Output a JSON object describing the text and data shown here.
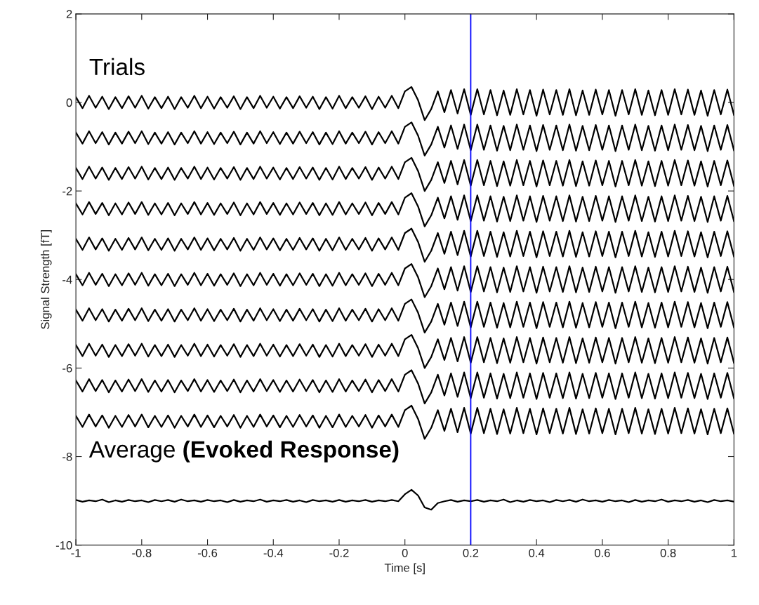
{
  "chart_data": {
    "type": "line",
    "xlabel": "Time [s]",
    "ylabel": "Signal Strength [fT]",
    "annotations": [
      "Trials",
      "Average ",
      "(Evoked Response)"
    ],
    "xlim": [
      -1,
      1
    ],
    "ylim": [
      -10,
      2
    ],
    "xticks": [
      -1,
      -0.8,
      -0.6,
      -0.4,
      -0.2,
      0,
      0.2,
      0.4,
      0.6,
      0.8,
      1
    ],
    "yticks": [
      -10,
      -8,
      -6,
      -4,
      -2,
      0,
      2
    ],
    "grid": false,
    "legend": false,
    "marker": "none",
    "line_style": "solid",
    "ref_lines": [
      {
        "axis": "x",
        "value": 0.2,
        "color": "#0000ff"
      }
    ],
    "x": [
      -1,
      -0.98,
      -0.96,
      -0.94,
      -0.92,
      -0.9,
      -0.88,
      -0.86,
      -0.84,
      -0.82,
      -0.8,
      -0.78,
      -0.76,
      -0.74,
      -0.72,
      -0.7,
      -0.68,
      -0.66,
      -0.64,
      -0.62,
      -0.6,
      -0.58,
      -0.56,
      -0.54,
      -0.52,
      -0.5,
      -0.48,
      -0.46,
      -0.44,
      -0.42,
      -0.4,
      -0.38,
      -0.36,
      -0.34,
      -0.32,
      -0.3,
      -0.28,
      -0.26,
      -0.24,
      -0.22,
      -0.2,
      -0.18,
      -0.16,
      -0.14,
      -0.12,
      -0.1,
      -0.08,
      -0.06,
      -0.04,
      -0.02,
      0,
      0.02,
      0.04,
      0.06,
      0.08,
      0.1,
      0.12,
      0.14,
      0.16,
      0.18,
      0.2,
      0.22,
      0.24,
      0.26,
      0.28,
      0.3,
      0.32,
      0.34,
      0.36,
      0.38,
      0.4,
      0.42,
      0.44,
      0.46,
      0.48,
      0.5,
      0.52,
      0.54,
      0.56,
      0.58,
      0.6,
      0.62,
      0.64,
      0.66,
      0.68,
      0.7,
      0.72,
      0.74,
      0.76,
      0.78,
      0.8,
      0.82,
      0.84,
      0.86,
      0.88,
      0.9,
      0.92,
      0.94,
      0.96,
      0.98,
      1
    ],
    "series": [
      {
        "color": "#000000",
        "values": [
          0.12,
          -0.13,
          0.15,
          -0.12,
          0.13,
          -0.15,
          0.12,
          -0.13,
          0.14,
          -0.12,
          0.15,
          -0.14,
          0.12,
          -0.13,
          0.13,
          -0.15,
          0.12,
          -0.12,
          0.15,
          -0.13,
          0.13,
          -0.14,
          0.12,
          -0.12,
          0.14,
          -0.15,
          0.12,
          -0.13,
          0.15,
          -0.12,
          0.13,
          -0.14,
          0.12,
          -0.13,
          0.14,
          -0.12,
          0.13,
          -0.15,
          0.12,
          -0.14,
          0.15,
          -0.13,
          0.12,
          -0.12,
          0.14,
          -0.15,
          0.13,
          -0.12,
          0.15,
          -0.13,
          0.25,
          0.35,
          0.05,
          -0.4,
          -0.15,
          0.25,
          -0.22,
          0.28,
          -0.25,
          0.3,
          -0.28,
          0.3,
          -0.27,
          0.28,
          -0.29,
          0.27,
          -0.28,
          0.3,
          -0.27,
          0.28,
          -0.3,
          0.29,
          -0.27,
          0.28,
          -0.28,
          0.3,
          -0.29,
          0.27,
          -0.28,
          0.29,
          -0.27,
          0.28,
          -0.3,
          0.28,
          -0.27,
          0.3,
          -0.28,
          0.27,
          -0.29,
          0.28,
          -0.28,
          0.3,
          -0.27,
          0.29,
          -0.28,
          0.27,
          -0.3,
          0.28,
          -0.27,
          0.29,
          -0.28
        ]
      },
      {
        "color": "#000000",
        "values": [
          -0.68,
          -0.93,
          -0.65,
          -0.92,
          -0.67,
          -0.95,
          -0.68,
          -0.93,
          -0.66,
          -0.92,
          -0.65,
          -0.94,
          -0.68,
          -0.93,
          -0.67,
          -0.95,
          -0.68,
          -0.92,
          -0.65,
          -0.93,
          -0.67,
          -0.94,
          -0.68,
          -0.92,
          -0.66,
          -0.95,
          -0.68,
          -0.93,
          -0.65,
          -0.92,
          -0.67,
          -0.94,
          -0.68,
          -0.93,
          -0.66,
          -0.92,
          -0.67,
          -0.95,
          -0.68,
          -0.94,
          -0.65,
          -0.93,
          -0.68,
          -0.92,
          -0.66,
          -0.95,
          -0.67,
          -0.92,
          -0.65,
          -0.93,
          -0.55,
          -0.45,
          -0.75,
          -1.2,
          -0.95,
          -0.55,
          -1.02,
          -0.52,
          -1.05,
          -0.5,
          -1.08,
          -0.5,
          -1.07,
          -0.52,
          -1.09,
          -0.53,
          -1.08,
          -0.5,
          -1.07,
          -0.52,
          -1.1,
          -0.51,
          -1.07,
          -0.52,
          -1.08,
          -0.5,
          -1.09,
          -0.53,
          -1.08,
          -0.51,
          -1.07,
          -0.52,
          -1.1,
          -0.52,
          -1.07,
          -0.5,
          -1.08,
          -0.53,
          -1.09,
          -0.52,
          -1.08,
          -0.5,
          -1.07,
          -0.51,
          -1.08,
          -0.53,
          -1.1,
          -0.52,
          -1.07,
          -0.51,
          -1.08
        ]
      },
      {
        "color": "#000000",
        "values": [
          -1.48,
          -1.73,
          -1.45,
          -1.72,
          -1.47,
          -1.75,
          -1.48,
          -1.73,
          -1.46,
          -1.72,
          -1.45,
          -1.74,
          -1.48,
          -1.73,
          -1.47,
          -1.75,
          -1.48,
          -1.72,
          -1.45,
          -1.73,
          -1.47,
          -1.74,
          -1.48,
          -1.72,
          -1.46,
          -1.75,
          -1.48,
          -1.73,
          -1.45,
          -1.72,
          -1.47,
          -1.74,
          -1.48,
          -1.73,
          -1.46,
          -1.72,
          -1.47,
          -1.75,
          -1.48,
          -1.74,
          -1.45,
          -1.73,
          -1.48,
          -1.72,
          -1.46,
          -1.75,
          -1.47,
          -1.72,
          -1.45,
          -1.73,
          -1.35,
          -1.25,
          -1.55,
          -2,
          -1.75,
          -1.35,
          -1.82,
          -1.32,
          -1.85,
          -1.3,
          -1.88,
          -1.3,
          -1.87,
          -1.32,
          -1.89,
          -1.33,
          -1.88,
          -1.3,
          -1.87,
          -1.32,
          -1.9,
          -1.31,
          -1.87,
          -1.32,
          -1.88,
          -1.3,
          -1.89,
          -1.33,
          -1.88,
          -1.31,
          -1.87,
          -1.32,
          -1.9,
          -1.32,
          -1.87,
          -1.3,
          -1.88,
          -1.33,
          -1.89,
          -1.32,
          -1.88,
          -1.3,
          -1.87,
          -1.31,
          -1.88,
          -1.33,
          -1.9,
          -1.32,
          -1.87,
          -1.31,
          -1.88
        ]
      },
      {
        "color": "#000000",
        "values": [
          -2.28,
          -2.53,
          -2.25,
          -2.52,
          -2.27,
          -2.55,
          -2.28,
          -2.53,
          -2.26,
          -2.52,
          -2.25,
          -2.54,
          -2.28,
          -2.53,
          -2.27,
          -2.55,
          -2.28,
          -2.52,
          -2.25,
          -2.53,
          -2.27,
          -2.54,
          -2.28,
          -2.52,
          -2.26,
          -2.55,
          -2.28,
          -2.53,
          -2.25,
          -2.52,
          -2.27,
          -2.54,
          -2.28,
          -2.53,
          -2.26,
          -2.52,
          -2.27,
          -2.55,
          -2.28,
          -2.54,
          -2.25,
          -2.53,
          -2.28,
          -2.52,
          -2.26,
          -2.55,
          -2.27,
          -2.52,
          -2.25,
          -2.53,
          -2.15,
          -2.05,
          -2.35,
          -2.8,
          -2.55,
          -2.15,
          -2.62,
          -2.12,
          -2.65,
          -2.1,
          -2.68,
          -2.1,
          -2.67,
          -2.12,
          -2.69,
          -2.13,
          -2.68,
          -2.1,
          -2.67,
          -2.12,
          -2.7,
          -2.11,
          -2.67,
          -2.12,
          -2.68,
          -2.1,
          -2.69,
          -2.13,
          -2.68,
          -2.11,
          -2.67,
          -2.12,
          -2.7,
          -2.12,
          -2.67,
          -2.1,
          -2.68,
          -2.13,
          -2.69,
          -2.12,
          -2.68,
          -2.1,
          -2.67,
          -2.11,
          -2.68,
          -2.13,
          -2.7,
          -2.12,
          -2.67,
          -2.11,
          -2.68
        ]
      },
      {
        "color": "#000000",
        "values": [
          -3.08,
          -3.33,
          -3.05,
          -3.32,
          -3.07,
          -3.35,
          -3.08,
          -3.33,
          -3.06,
          -3.32,
          -3.05,
          -3.34,
          -3.08,
          -3.33,
          -3.07,
          -3.35,
          -3.08,
          -3.32,
          -3.05,
          -3.33,
          -3.07,
          -3.34,
          -3.08,
          -3.32,
          -3.06,
          -3.35,
          -3.08,
          -3.33,
          -3.05,
          -3.32,
          -3.07,
          -3.34,
          -3.08,
          -3.33,
          -3.06,
          -3.32,
          -3.07,
          -3.35,
          -3.08,
          -3.34,
          -3.05,
          -3.33,
          -3.08,
          -3.32,
          -3.06,
          -3.35,
          -3.07,
          -3.32,
          -3.05,
          -3.33,
          -2.95,
          -2.85,
          -3.15,
          -3.6,
          -3.35,
          -2.95,
          -3.42,
          -2.92,
          -3.45,
          -2.9,
          -3.48,
          -2.9,
          -3.47,
          -2.92,
          -3.49,
          -2.93,
          -3.48,
          -2.9,
          -3.47,
          -2.92,
          -3.5,
          -2.91,
          -3.47,
          -2.92,
          -3.48,
          -2.9,
          -3.49,
          -2.93,
          -3.48,
          -2.91,
          -3.47,
          -2.92,
          -3.5,
          -2.92,
          -3.47,
          -2.9,
          -3.48,
          -2.93,
          -3.49,
          -2.92,
          -3.48,
          -2.9,
          -3.47,
          -2.91,
          -3.48,
          -2.93,
          -3.5,
          -2.92,
          -3.47,
          -2.91,
          -3.48
        ]
      },
      {
        "color": "#000000",
        "values": [
          -3.88,
          -4.13,
          -3.85,
          -4.12,
          -3.87,
          -4.15,
          -3.88,
          -4.13,
          -3.86,
          -4.12,
          -3.85,
          -4.14,
          -3.88,
          -4.13,
          -3.87,
          -4.15,
          -3.88,
          -4.12,
          -3.85,
          -4.13,
          -3.87,
          -4.14,
          -3.88,
          -4.12,
          -3.86,
          -4.15,
          -3.88,
          -4.13,
          -3.85,
          -4.12,
          -3.87,
          -4.14,
          -3.88,
          -4.13,
          -3.86,
          -4.12,
          -3.87,
          -4.15,
          -3.88,
          -4.14,
          -3.85,
          -4.13,
          -3.88,
          -4.12,
          -3.86,
          -4.15,
          -3.87,
          -4.12,
          -3.85,
          -4.13,
          -3.75,
          -3.65,
          -3.95,
          -4.4,
          -4.15,
          -3.75,
          -4.22,
          -3.72,
          -4.25,
          -3.7,
          -4.28,
          -3.7,
          -4.27,
          -3.72,
          -4.29,
          -3.73,
          -4.28,
          -3.7,
          -4.27,
          -3.72,
          -4.3,
          -3.71,
          -4.27,
          -3.72,
          -4.28,
          -3.7,
          -4.29,
          -3.73,
          -4.28,
          -3.71,
          -4.27,
          -3.72,
          -4.3,
          -3.72,
          -4.27,
          -3.7,
          -4.28,
          -3.73,
          -4.29,
          -3.72,
          -4.28,
          -3.7,
          -4.27,
          -3.71,
          -4.28,
          -3.73,
          -4.3,
          -3.72,
          -4.27,
          -3.71,
          -4.28
        ]
      },
      {
        "color": "#000000",
        "values": [
          -4.68,
          -4.93,
          -4.65,
          -4.92,
          -4.67,
          -4.95,
          -4.68,
          -4.93,
          -4.66,
          -4.92,
          -4.65,
          -4.94,
          -4.68,
          -4.93,
          -4.67,
          -4.95,
          -4.68,
          -4.92,
          -4.65,
          -4.93,
          -4.67,
          -4.94,
          -4.68,
          -4.92,
          -4.66,
          -4.95,
          -4.68,
          -4.93,
          -4.65,
          -4.92,
          -4.67,
          -4.94,
          -4.68,
          -4.93,
          -4.66,
          -4.92,
          -4.67,
          -4.95,
          -4.68,
          -4.94,
          -4.65,
          -4.93,
          -4.68,
          -4.92,
          -4.66,
          -4.95,
          -4.67,
          -4.92,
          -4.65,
          -4.93,
          -4.55,
          -4.45,
          -4.75,
          -5.2,
          -4.95,
          -4.55,
          -5.02,
          -4.52,
          -5.05,
          -4.5,
          -5.08,
          -4.5,
          -5.07,
          -4.52,
          -5.09,
          -4.53,
          -5.08,
          -4.5,
          -5.07,
          -4.52,
          -5.1,
          -4.51,
          -5.07,
          -4.52,
          -5.08,
          -4.5,
          -5.09,
          -4.53,
          -5.08,
          -4.51,
          -5.07,
          -4.52,
          -5.1,
          -4.52,
          -5.07,
          -4.5,
          -5.08,
          -4.53,
          -5.09,
          -4.52,
          -5.08,
          -4.5,
          -5.07,
          -4.51,
          -5.08,
          -4.53,
          -5.1,
          -4.52,
          -5.07,
          -4.51,
          -5.08
        ]
      },
      {
        "color": "#000000",
        "values": [
          -5.48,
          -5.73,
          -5.45,
          -5.72,
          -5.47,
          -5.75,
          -5.48,
          -5.73,
          -5.46,
          -5.72,
          -5.45,
          -5.74,
          -5.48,
          -5.73,
          -5.47,
          -5.75,
          -5.48,
          -5.72,
          -5.45,
          -5.73,
          -5.47,
          -5.74,
          -5.48,
          -5.72,
          -5.46,
          -5.75,
          -5.48,
          -5.73,
          -5.45,
          -5.72,
          -5.47,
          -5.74,
          -5.48,
          -5.73,
          -5.46,
          -5.72,
          -5.47,
          -5.75,
          -5.48,
          -5.74,
          -5.45,
          -5.73,
          -5.48,
          -5.72,
          -5.46,
          -5.75,
          -5.47,
          -5.72,
          -5.45,
          -5.73,
          -5.35,
          -5.25,
          -5.55,
          -6,
          -5.75,
          -5.35,
          -5.82,
          -5.32,
          -5.85,
          -5.3,
          -5.88,
          -5.3,
          -5.87,
          -5.32,
          -5.89,
          -5.33,
          -5.88,
          -5.3,
          -5.87,
          -5.32,
          -5.9,
          -5.31,
          -5.87,
          -5.32,
          -5.88,
          -5.3,
          -5.89,
          -5.33,
          -5.88,
          -5.31,
          -5.87,
          -5.32,
          -5.9,
          -5.32,
          -5.87,
          -5.3,
          -5.88,
          -5.33,
          -5.89,
          -5.32,
          -5.88,
          -5.3,
          -5.87,
          -5.31,
          -5.88,
          -5.33,
          -5.9,
          -5.32,
          -5.87,
          -5.31,
          -5.88
        ]
      },
      {
        "color": "#000000",
        "values": [
          -6.28,
          -6.53,
          -6.25,
          -6.52,
          -6.27,
          -6.55,
          -6.28,
          -6.53,
          -6.26,
          -6.52,
          -6.25,
          -6.54,
          -6.28,
          -6.53,
          -6.27,
          -6.55,
          -6.28,
          -6.52,
          -6.25,
          -6.53,
          -6.27,
          -6.54,
          -6.28,
          -6.52,
          -6.26,
          -6.55,
          -6.28,
          -6.53,
          -6.25,
          -6.52,
          -6.27,
          -6.54,
          -6.28,
          -6.53,
          -6.26,
          -6.52,
          -6.27,
          -6.55,
          -6.28,
          -6.54,
          -6.25,
          -6.53,
          -6.28,
          -6.52,
          -6.26,
          -6.55,
          -6.27,
          -6.52,
          -6.25,
          -6.53,
          -6.15,
          -6.05,
          -6.35,
          -6.8,
          -6.55,
          -6.15,
          -6.62,
          -6.12,
          -6.65,
          -6.1,
          -6.68,
          -6.1,
          -6.67,
          -6.12,
          -6.69,
          -6.13,
          -6.68,
          -6.1,
          -6.67,
          -6.12,
          -6.7,
          -6.11,
          -6.67,
          -6.12,
          -6.68,
          -6.1,
          -6.69,
          -6.13,
          -6.68,
          -6.11,
          -6.67,
          -6.12,
          -6.7,
          -6.12,
          -6.67,
          -6.1,
          -6.68,
          -6.13,
          -6.69,
          -6.12,
          -6.68,
          -6.1,
          -6.67,
          -6.11,
          -6.68,
          -6.13,
          -6.7,
          -6.12,
          -6.67,
          -6.11,
          -6.68
        ]
      },
      {
        "color": "#000000",
        "values": [
          -7.08,
          -7.33,
          -7.05,
          -7.32,
          -7.07,
          -7.35,
          -7.08,
          -7.33,
          -7.06,
          -7.32,
          -7.05,
          -7.34,
          -7.08,
          -7.33,
          -7.07,
          -7.35,
          -7.08,
          -7.32,
          -7.05,
          -7.33,
          -7.07,
          -7.34,
          -7.08,
          -7.32,
          -7.06,
          -7.35,
          -7.08,
          -7.33,
          -7.05,
          -7.32,
          -7.07,
          -7.34,
          -7.08,
          -7.33,
          -7.06,
          -7.32,
          -7.07,
          -7.35,
          -7.08,
          -7.34,
          -7.05,
          -7.33,
          -7.08,
          -7.32,
          -7.06,
          -7.35,
          -7.07,
          -7.32,
          -7.05,
          -7.33,
          -6.95,
          -6.85,
          -7.15,
          -7.6,
          -7.35,
          -6.95,
          -7.42,
          -6.92,
          -7.45,
          -6.9,
          -7.48,
          -6.9,
          -7.47,
          -6.92,
          -7.49,
          -6.93,
          -7.48,
          -6.9,
          -7.47,
          -6.92,
          -7.5,
          -6.91,
          -7.47,
          -6.92,
          -7.48,
          -6.9,
          -7.49,
          -6.93,
          -7.48,
          -6.91,
          -7.47,
          -6.92,
          -7.5,
          -6.92,
          -7.47,
          -6.9,
          -7.48,
          -6.93,
          -7.49,
          -6.92,
          -7.48,
          -6.9,
          -7.47,
          -6.91,
          -7.48,
          -6.93,
          -7.5,
          -6.92,
          -7.47,
          -6.91,
          -7.48
        ]
      },
      {
        "color": "#000000",
        "values": [
          -8.98,
          -9.02,
          -8.99,
          -9.01,
          -8.97,
          -9.03,
          -8.99,
          -9.02,
          -8.98,
          -9.01,
          -8.99,
          -9.03,
          -8.98,
          -9.01,
          -8.98,
          -9.02,
          -8.97,
          -9.01,
          -8.99,
          -9.02,
          -8.98,
          -9.01,
          -8.99,
          -9.03,
          -8.98,
          -9.02,
          -8.99,
          -9.01,
          -8.97,
          -9.02,
          -8.99,
          -9.01,
          -8.98,
          -9.02,
          -8.99,
          -9.03,
          -8.98,
          -9.01,
          -8.99,
          -9.02,
          -8.98,
          -9.02,
          -8.99,
          -9.01,
          -8.98,
          -9.02,
          -8.99,
          -9.01,
          -8.98,
          -9.01,
          -8.85,
          -8.75,
          -8.88,
          -9.15,
          -9.2,
          -9.05,
          -9.01,
          -8.98,
          -9.02,
          -8.99,
          -9.01,
          -8.98,
          -9.02,
          -8.99,
          -9.01,
          -8.97,
          -9.03,
          -8.99,
          -9.02,
          -8.98,
          -9.01,
          -8.99,
          -9.03,
          -8.98,
          -9.01,
          -8.98,
          -9.02,
          -8.97,
          -9.01,
          -8.99,
          -9.02,
          -8.98,
          -9.01,
          -8.99,
          -9.03,
          -8.98,
          -9.02,
          -8.99,
          -9.01,
          -8.97,
          -9.02,
          -8.99,
          -9.01,
          -8.98,
          -9.02,
          -8.99,
          -9.03,
          -8.98,
          -9.01,
          -8.99,
          -9.02
        ]
      }
    ]
  }
}
